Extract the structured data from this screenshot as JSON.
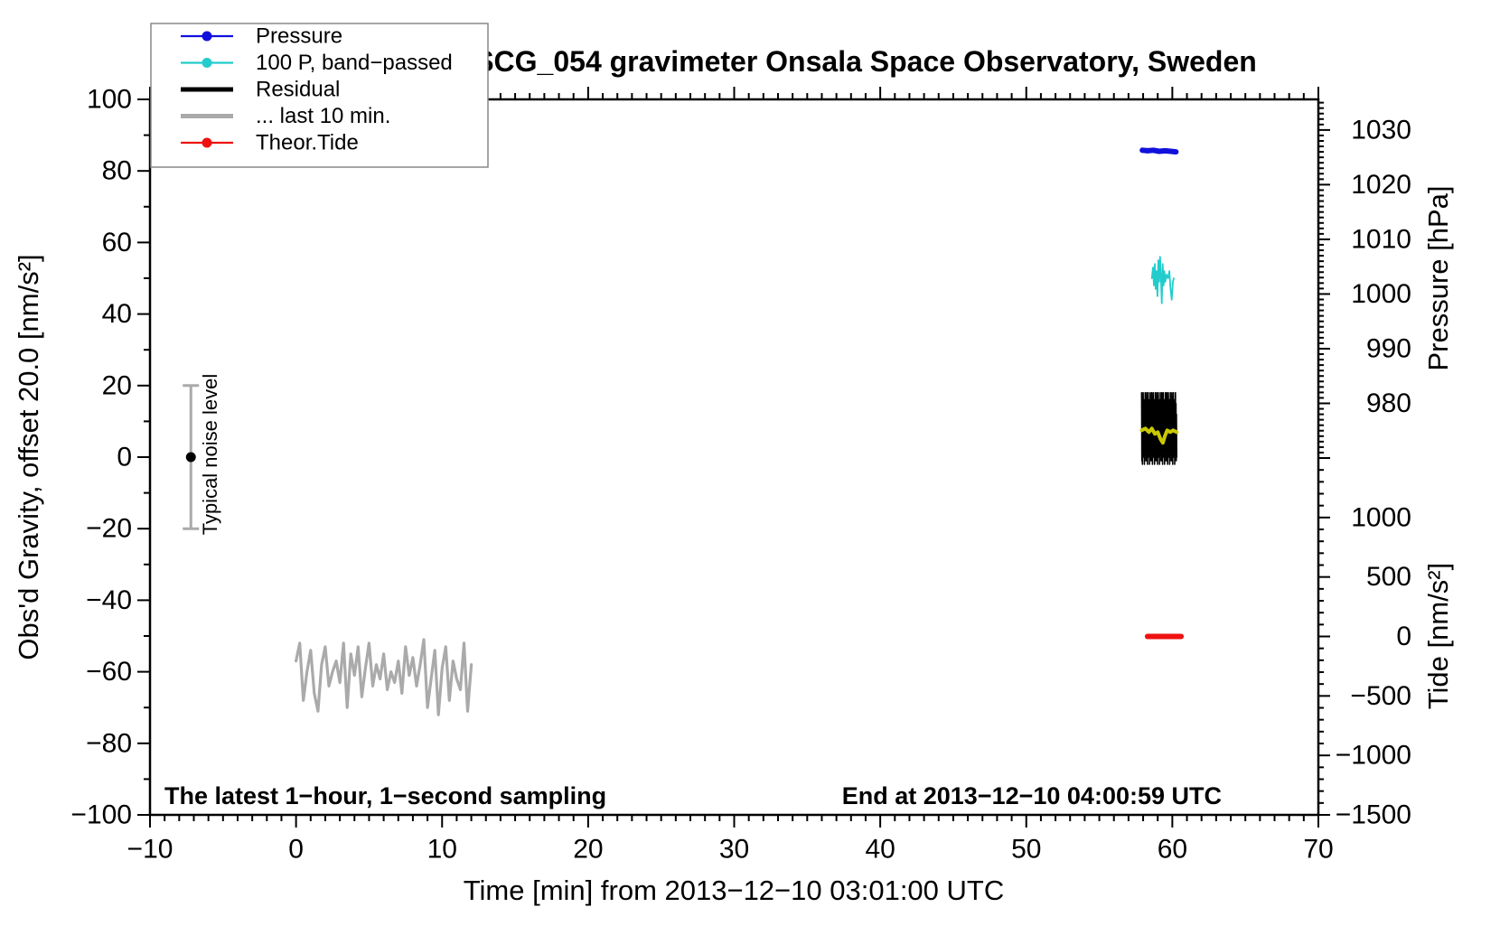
{
  "chart_data": {
    "type": "line",
    "title": "SCG_054 gravimeter Onsala Space Observatory, Sweden",
    "annotations": {
      "sampling_note": "The latest 1−hour, 1−second sampling",
      "end_note": "End at 2013−12−10 04:00:59 UTC",
      "noise_label": "Typical noise level"
    },
    "axes": {
      "x": {
        "title": "Time [min] from 2013−12−10 03:01:00 UTC",
        "min": -10,
        "max": 70,
        "minor_step": 1,
        "major_step": 10,
        "tick_values": [
          -10,
          0,
          10,
          20,
          30,
          40,
          50,
          60,
          70
        ],
        "tick_labels": [
          "−10",
          "0",
          "10",
          "20",
          "30",
          "40",
          "50",
          "60",
          "70"
        ]
      },
      "gravity": {
        "title": "Obs'd Gravity, offset 20.0 [nm/s²]",
        "min": -100,
        "max": 100,
        "minor_step": 10,
        "major_step": 20,
        "tick_values": [
          100,
          80,
          60,
          40,
          20,
          0,
          -20,
          -40,
          -60,
          -80,
          -100
        ],
        "tick_labels": [
          "100",
          "80",
          "60",
          "40",
          "20",
          "0",
          "−20",
          "−40",
          "−60",
          "−80",
          "−100"
        ]
      },
      "pressure": {
        "title": "Pressure [hPa]",
        "min": 970,
        "max": 1035.6,
        "minor_step": 1,
        "major_step": 10,
        "tick_values": [
          1030,
          1020,
          1010,
          1000,
          990,
          980
        ],
        "tick_labels": [
          "1030",
          "1020",
          "1010",
          "1000",
          "990",
          "980"
        ]
      },
      "tide": {
        "title": "Tide [nm/s²]",
        "min": -1500,
        "max": 1500,
        "minor_step": 100,
        "major_step": 500,
        "tick_values": [
          1000,
          500,
          0,
          -500,
          -1000,
          -1500
        ],
        "tick_labels": [
          "1000",
          "500",
          "0",
          "−500",
          "−1000",
          "−1500"
        ]
      }
    },
    "noise_bar": {
      "x": -7.2,
      "center_value": 0,
      "half_range": 20,
      "bar_color": "#aaaaaa",
      "dot_color": "#000000"
    },
    "series": [
      {
        "name": "last-10-min-gray",
        "axis": "gravity",
        "color": "#aaaaaa",
        "width": 3.2,
        "t_start": 0,
        "t_step": 0.25,
        "values": [
          -57,
          -52,
          -68,
          -60,
          -54,
          -66,
          -71,
          -58,
          -53,
          -64,
          -60,
          -57,
          -63,
          -52,
          -70,
          -55,
          -61,
          -53,
          -67,
          -59,
          -52,
          -64,
          -58,
          -62,
          -55,
          -65,
          -60,
          -63,
          -57,
          -66,
          -53,
          -61,
          -56,
          -64,
          -58,
          -51,
          -70,
          -62,
          -54,
          -72,
          -59,
          -53,
          -68,
          -57,
          -62,
          -65,
          -52,
          -71,
          -58
        ]
      },
      {
        "name": "pressure-blue",
        "axis": "pressure",
        "color": "#1111dd",
        "width": 6,
        "points": [
          [
            57.95,
            1026.3
          ],
          [
            58.3,
            1026.2
          ],
          [
            58.7,
            1026.3
          ],
          [
            59.1,
            1026.1
          ],
          [
            59.5,
            1026.2
          ],
          [
            59.9,
            1026.1
          ],
          [
            60.25,
            1026.0
          ]
        ]
      },
      {
        "name": "band-passed-cyan",
        "axis": "gravity",
        "color": "#22cccc",
        "width": 1.8,
        "points": [
          [
            58.6,
            50
          ],
          [
            58.68,
            53
          ],
          [
            58.74,
            48
          ],
          [
            58.8,
            54
          ],
          [
            58.86,
            47
          ],
          [
            58.92,
            52
          ],
          [
            58.98,
            45
          ],
          [
            59.04,
            55
          ],
          [
            59.1,
            49
          ],
          [
            59.16,
            56
          ],
          [
            59.22,
            50
          ],
          [
            59.28,
            43
          ],
          [
            59.34,
            54
          ],
          [
            59.4,
            48
          ],
          [
            59.46,
            52
          ],
          [
            59.52,
            49
          ],
          [
            59.6,
            51
          ],
          [
            59.7,
            50
          ],
          [
            59.8,
            52
          ],
          [
            59.88,
            47
          ],
          [
            59.96,
            44
          ],
          [
            60.04,
            49
          ],
          [
            60.1,
            50
          ]
        ]
      },
      {
        "name": "residual-black",
        "axis": "gravity",
        "color": "#000000",
        "width": 1.6,
        "t_start": 57.9,
        "t_end": 60.3,
        "base": 8,
        "repeats": 7,
        "pattern": [
          10,
          -9,
          6,
          -10,
          9,
          -4,
          10,
          -8,
          3,
          -7,
          8,
          -10,
          5,
          -6,
          10,
          -3,
          7,
          -9,
          4,
          -8
        ]
      },
      {
        "name": "residual-smoothed-yellow",
        "axis": "gravity",
        "color": "#c9c900",
        "width": 4,
        "points": [
          [
            57.9,
            7.5
          ],
          [
            58.15,
            8
          ],
          [
            58.4,
            7
          ],
          [
            58.6,
            8
          ],
          [
            58.8,
            6.5
          ],
          [
            59.0,
            7
          ],
          [
            59.2,
            5
          ],
          [
            59.35,
            4
          ],
          [
            59.5,
            6
          ],
          [
            59.65,
            7.5
          ],
          [
            59.85,
            7
          ],
          [
            60.05,
            7.5
          ],
          [
            60.3,
            7
          ]
        ]
      },
      {
        "name": "theor-tide-red",
        "axis": "tide",
        "color": "#ee1111",
        "width": 6,
        "points": [
          [
            58.3,
            0
          ],
          [
            60.6,
            0
          ]
        ]
      }
    ]
  },
  "legend": {
    "entries": [
      {
        "label": "Pressure",
        "color": "#1111dd",
        "dot": true,
        "lw": 2.2
      },
      {
        "label": "100 P, band−passed",
        "color": "#22cccc",
        "dot": true,
        "lw": 2.2
      },
      {
        "label": "Residual",
        "color": "#000000",
        "dot": false,
        "lw": 5
      },
      {
        "label": "... last 10 min.",
        "color": "#aaaaaa",
        "dot": false,
        "lw": 5
      },
      {
        "label": "Theor.Tide",
        "color": "#ee1111",
        "dot": true,
        "lw": 2.2
      }
    ]
  }
}
